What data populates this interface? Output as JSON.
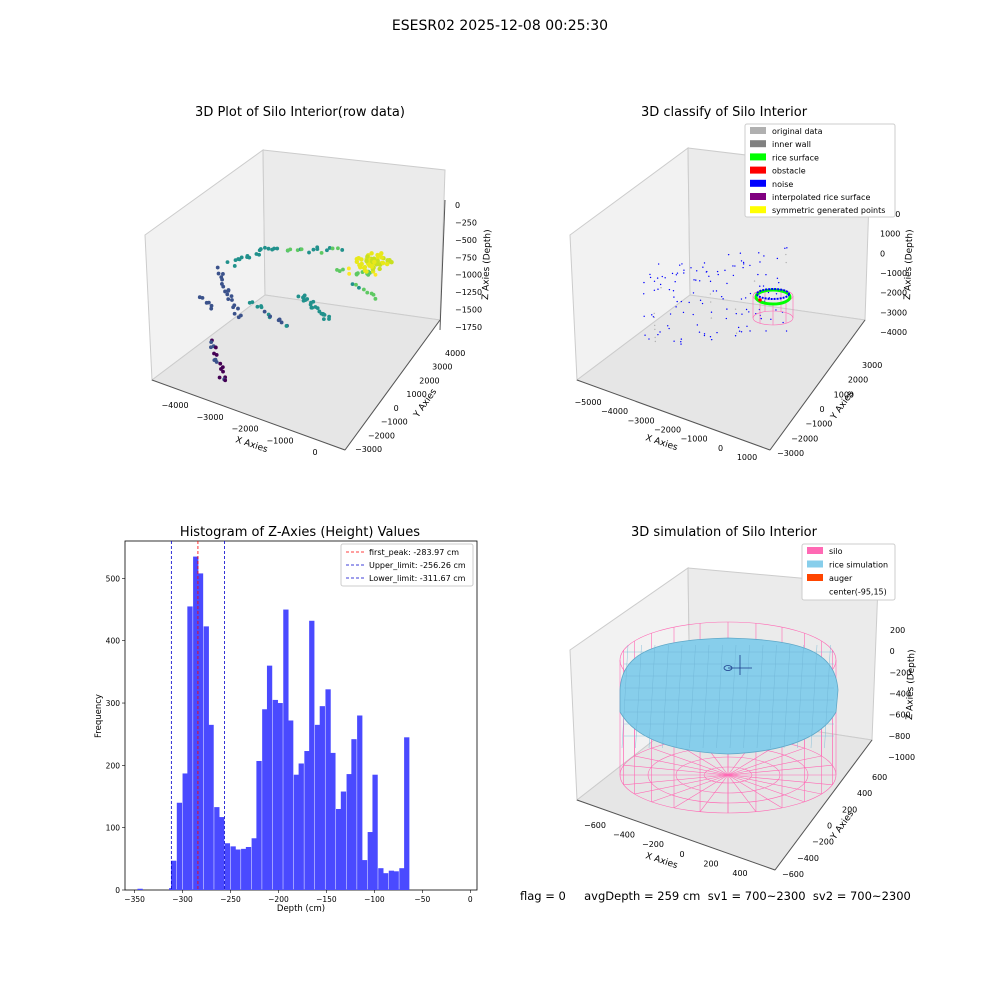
{
  "figure": {
    "suptitle": "ESESR02 2025-12-08 00:25:30",
    "footer": "flag = 0     avgDepth = 259 cm  sv1 = 700~2300  sv2 = 700~2300"
  },
  "colors": {
    "hist_bar": "#4a4aff",
    "first_peak": "#ff0000",
    "limits": "#0000cc",
    "pane": "#f2f2f2",
    "grid": "#d9d9d9",
    "silo": "#ff69b4",
    "rice": "#87ceeb",
    "auger": "#ff4500",
    "noise": "#0000ff",
    "rice_surface": "#00ff00",
    "obstacle": "#ff0000"
  },
  "panels": {
    "raw": {
      "title": "3D Plot of Silo Interior(row data)",
      "xlabel": "X Axies",
      "ylabel": "Y Axies",
      "zlabel": "Z Axies (Depth)",
      "x_ticks": [
        "−4000",
        "−3000",
        "−2000",
        "−1000",
        "0"
      ],
      "y_ticks": [
        "−3000",
        "−2000",
        "−1000",
        "0",
        "1000",
        "2000",
        "3000",
        "4000"
      ],
      "z_ticks": [
        "0",
        "−250",
        "−500",
        "−750",
        "−1000",
        "−1250",
        "−1500",
        "−1750"
      ]
    },
    "classify": {
      "title": "3D classify of Silo Interior",
      "xlabel": "X Axies",
      "ylabel": "Y Axies",
      "zlabel": "Z Axies (Depth)",
      "x_ticks": [
        "−5000",
        "−4000",
        "−3000",
        "−2000",
        "−1000",
        "0",
        "1000"
      ],
      "y_ticks": [
        "−3000",
        "−2000",
        "−1000",
        "0",
        "1000",
        "2000",
        "3000"
      ],
      "z_ticks": [
        "2000",
        "1000",
        "0",
        "−1000",
        "−2000",
        "−3000",
        "−4000"
      ],
      "legend": [
        {
          "label": "original data",
          "color": "#b0b0b0"
        },
        {
          "label": "inner wall",
          "color": "#808080"
        },
        {
          "label": "rice surface",
          "color": "#00ff00"
        },
        {
          "label": "obstacle",
          "color": "#ff0000"
        },
        {
          "label": "noise",
          "color": "#0000ff"
        },
        {
          "label": "interpolated rice surface",
          "color": "#800080"
        },
        {
          "label": "symmetric generated points",
          "color": "#ffff00"
        }
      ]
    },
    "simulation": {
      "title": "3D simulation of Silo Interior",
      "xlabel": "X Axies",
      "ylabel": "Y Axies",
      "zlabel": "Z Axies (Depth)",
      "x_ticks": [
        "−600",
        "−400",
        "−200",
        "0",
        "200",
        "400"
      ],
      "y_ticks": [
        "−600",
        "−400",
        "−200",
        "0",
        "200",
        "400",
        "600"
      ],
      "z_ticks": [
        "200",
        "0",
        "−200",
        "−400",
        "−600",
        "−800",
        "−1000"
      ],
      "legend": [
        {
          "label": "silo",
          "color": "#ff69b4"
        },
        {
          "label": "rice simulation",
          "color": "#87ceeb"
        },
        {
          "label": "auger",
          "color": "#ff4500"
        },
        {
          "label": "center(-95,15)",
          "color": ""
        }
      ]
    }
  },
  "chart_data": {
    "type": "bar",
    "title": "Histogram of Z-Axies (Height) Values",
    "xlabel": "Depth (cm)",
    "ylabel": "Frequency",
    "xlim": [
      -360,
      7
    ],
    "ylim": [
      0,
      560
    ],
    "x_ticks": [
      -350,
      -300,
      -250,
      -200,
      -150,
      -100,
      -50,
      0
    ],
    "y_ticks": [
      0,
      100,
      200,
      300,
      400,
      500
    ],
    "bin_width": 5.5,
    "bins": [
      {
        "x0": -347,
        "count": 2
      },
      {
        "x0": -314,
        "count": 3
      },
      {
        "x0": -312,
        "count": 47
      },
      {
        "x0": -306,
        "count": 140
      },
      {
        "x0": -300,
        "count": 187
      },
      {
        "x0": -295,
        "count": 455
      },
      {
        "x0": -289,
        "count": 535
      },
      {
        "x0": -284,
        "count": 508
      },
      {
        "x0": -278,
        "count": 423
      },
      {
        "x0": -273,
        "count": 265
      },
      {
        "x0": -267,
        "count": 133
      },
      {
        "x0": -262,
        "count": 117
      },
      {
        "x0": -256,
        "count": 75
      },
      {
        "x0": -250,
        "count": 70
      },
      {
        "x0": -245,
        "count": 65
      },
      {
        "x0": -239,
        "count": 66
      },
      {
        "x0": -234,
        "count": 69
      },
      {
        "x0": -228,
        "count": 83
      },
      {
        "x0": -223,
        "count": 207
      },
      {
        "x0": -217,
        "count": 290
      },
      {
        "x0": -212,
        "count": 360
      },
      {
        "x0": -206,
        "count": 305
      },
      {
        "x0": -201,
        "count": 300
      },
      {
        "x0": -195,
        "count": 450
      },
      {
        "x0": -190,
        "count": 272
      },
      {
        "x0": -184,
        "count": 185
      },
      {
        "x0": -179,
        "count": 203
      },
      {
        "x0": -173,
        "count": 223
      },
      {
        "x0": -168,
        "count": 432
      },
      {
        "x0": -162,
        "count": 265
      },
      {
        "x0": -157,
        "count": 295
      },
      {
        "x0": -151,
        "count": 322
      },
      {
        "x0": -146,
        "count": 220
      },
      {
        "x0": -140,
        "count": 130
      },
      {
        "x0": -135,
        "count": 158
      },
      {
        "x0": -129,
        "count": 186
      },
      {
        "x0": -124,
        "count": 242
      },
      {
        "x0": -118,
        "count": 280
      },
      {
        "x0": -113,
        "count": 48
      },
      {
        "x0": -107,
        "count": 93
      },
      {
        "x0": -102,
        "count": 185
      },
      {
        "x0": -96,
        "count": 35
      },
      {
        "x0": -91,
        "count": 27
      },
      {
        "x0": -85,
        "count": 31
      },
      {
        "x0": -80,
        "count": 30
      },
      {
        "x0": -74,
        "count": 35
      },
      {
        "x0": -69,
        "count": 245
      }
    ],
    "vlines": [
      {
        "x": -283.97,
        "style": "first_peak",
        "label": "first_peak: -283.97 cm"
      },
      {
        "x": -256.26,
        "style": "limits",
        "label": "Upper_limit: -256.26 cm"
      },
      {
        "x": -311.67,
        "style": "limits",
        "label": "Lower_limit: -311.67 cm"
      }
    ]
  }
}
